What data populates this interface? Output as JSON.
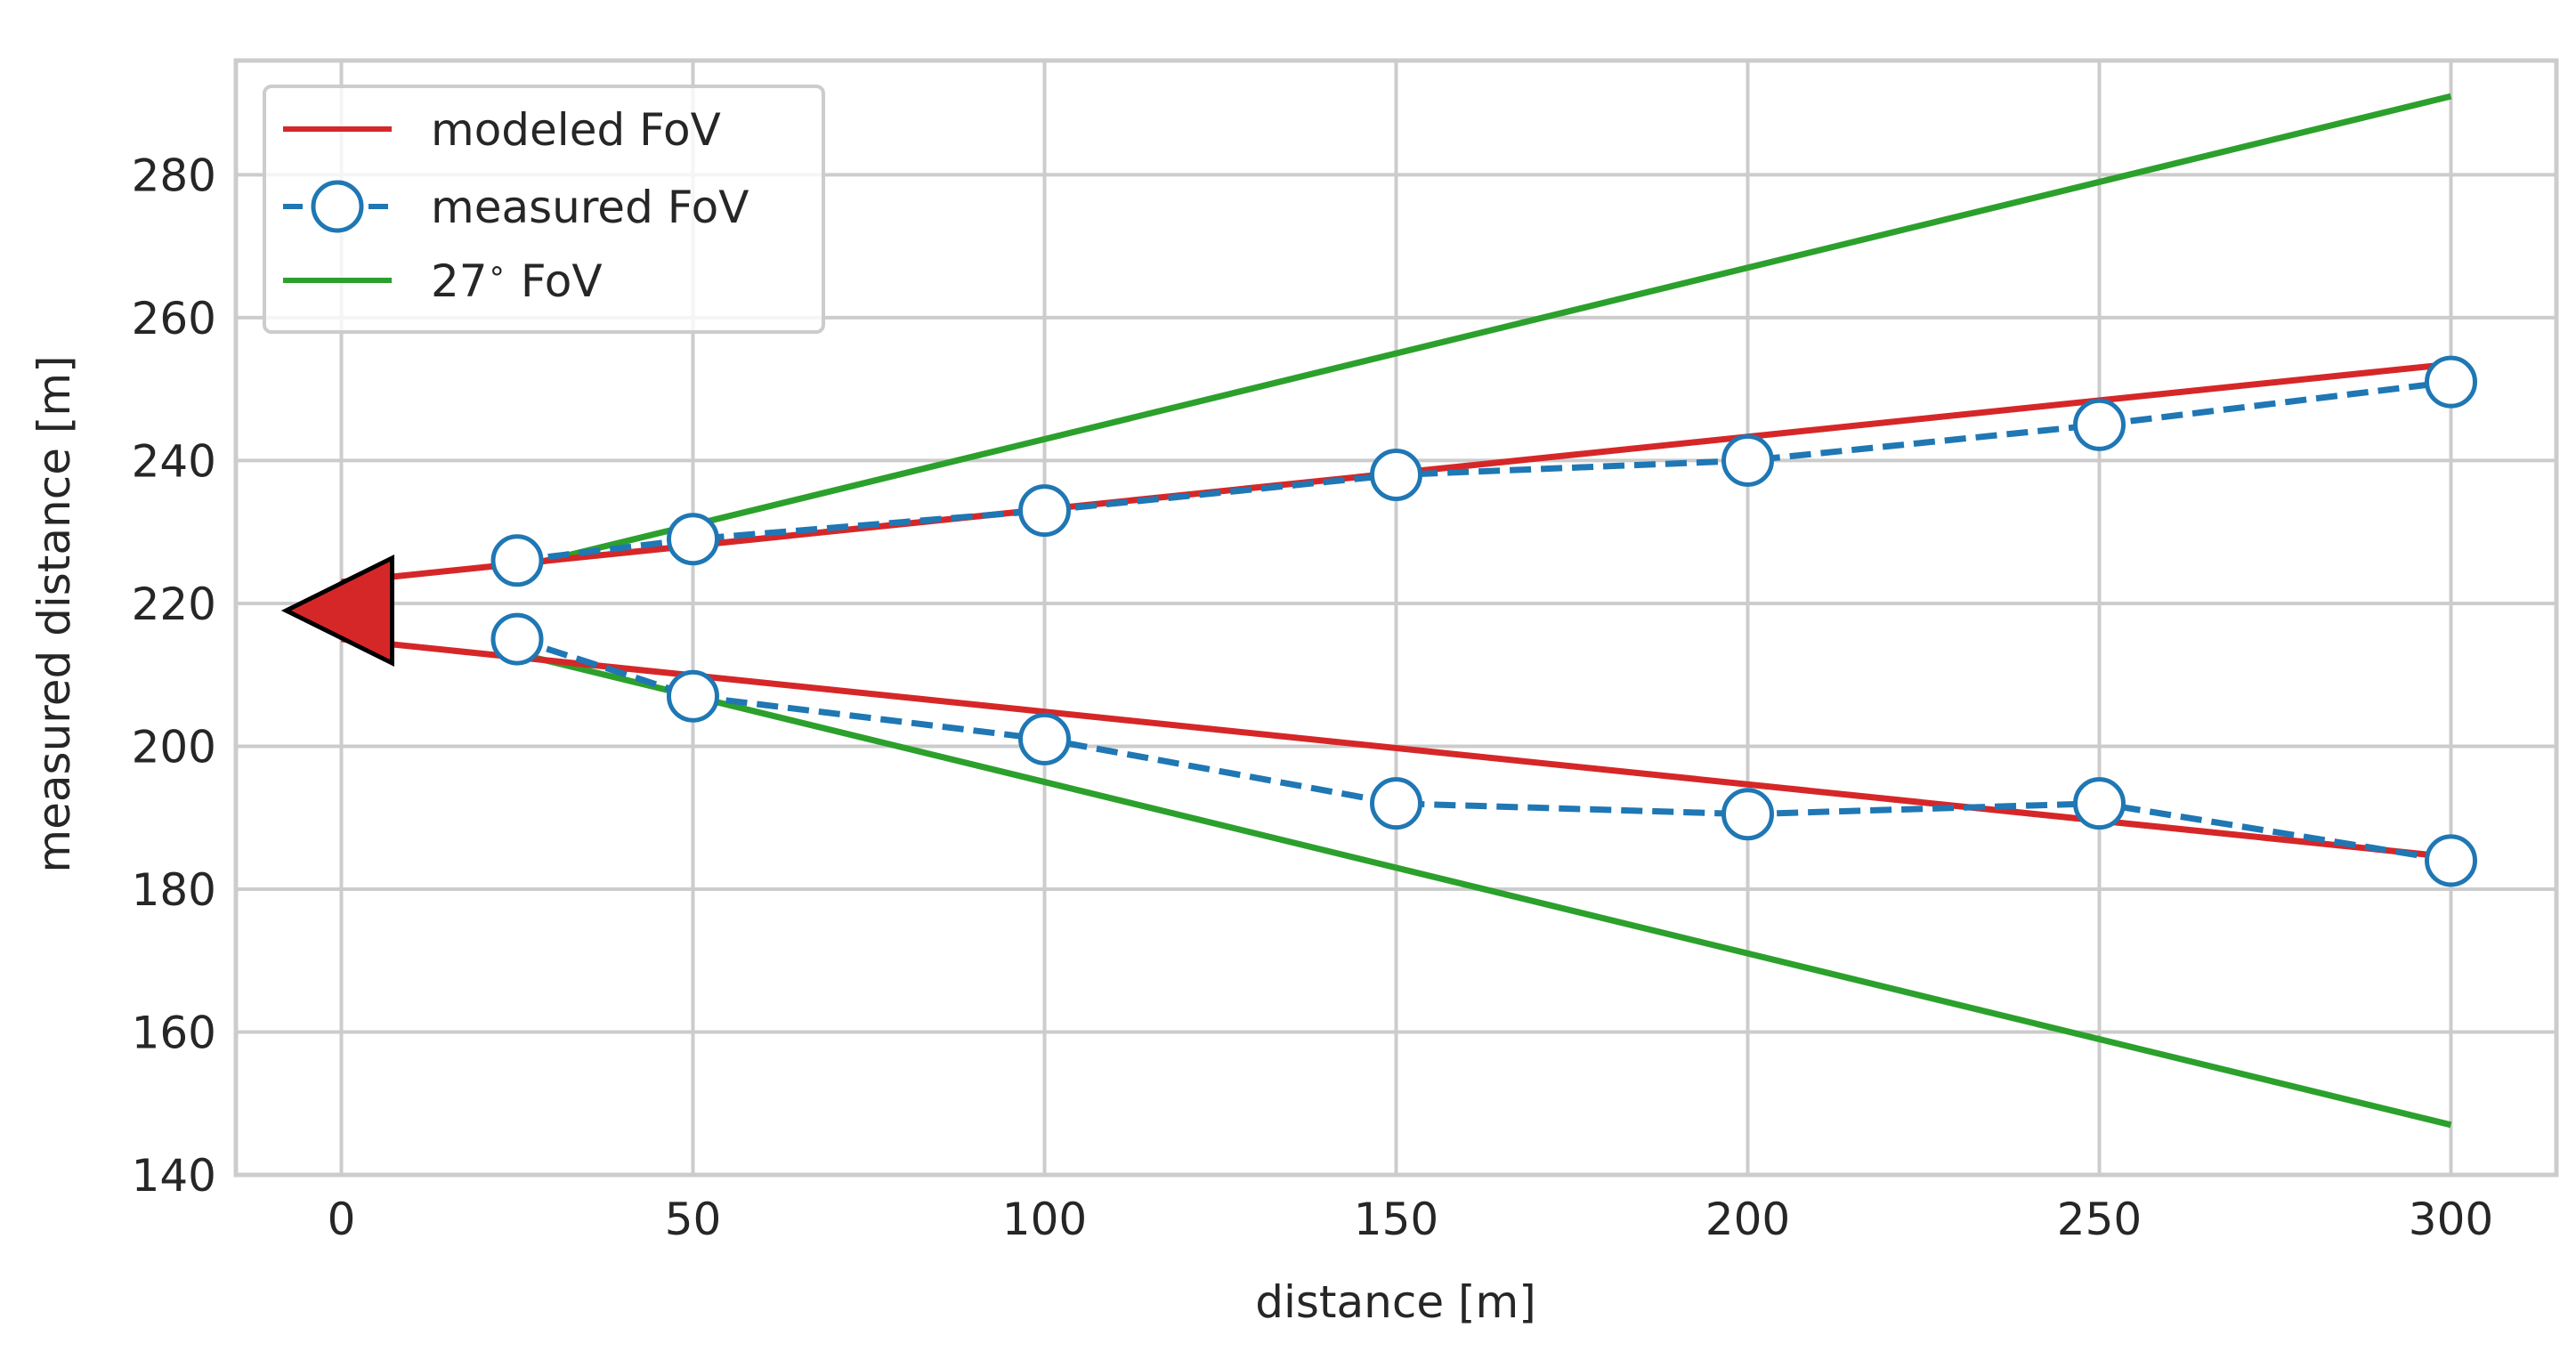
{
  "chart_data": {
    "type": "line",
    "title": "",
    "xlabel": "distance [m]",
    "ylabel": "measured distance [m]",
    "xlim": [
      -15,
      315
    ],
    "ylim": [
      140,
      296
    ],
    "xticks": [
      0,
      50,
      100,
      150,
      200,
      250,
      300
    ],
    "yticks": [
      140,
      160,
      180,
      200,
      220,
      240,
      260,
      280
    ],
    "grid": true,
    "legend_position": "top-left",
    "colors": {
      "modeled": "#d62728",
      "measured": "#1f77b4",
      "fov27": "#2ca02c",
      "grid": "#cccccc",
      "text": "#262626"
    },
    "sensor_marker": {
      "x": 0,
      "y": 219,
      "shape": "left-pointing triangle",
      "color": "#d62728"
    },
    "series": [
      {
        "name": "modeled FoV",
        "style": "solid",
        "lines": [
          {
            "x": [
              0,
              300
            ],
            "y": [
              223,
              253.5
            ]
          },
          {
            "x": [
              0,
              300
            ],
            "y": [
              215,
              184.5
            ]
          }
        ]
      },
      {
        "name": "measured FoV",
        "style": "dashed with open circle markers",
        "lines": [
          {
            "x": [
              25,
              50,
              100,
              150,
              200,
              250,
              300
            ],
            "y": [
              226,
              229,
              233,
              238,
              240,
              245,
              251
            ]
          },
          {
            "x": [
              25,
              50,
              100,
              150,
              200,
              250,
              300
            ],
            "y": [
              215,
              207,
              201,
              192,
              190.5,
              192,
              184
            ]
          }
        ]
      },
      {
        "name": "27° FoV",
        "style": "solid",
        "lines": [
          {
            "x": [
              25,
              300
            ],
            "y": [
              225,
              291
            ]
          },
          {
            "x": [
              25,
              300
            ],
            "y": [
              213,
              147
            ]
          }
        ]
      }
    ],
    "legend": [
      "modeled FoV",
      "measured FoV",
      "27$^\\circ$ FoV"
    ]
  }
}
